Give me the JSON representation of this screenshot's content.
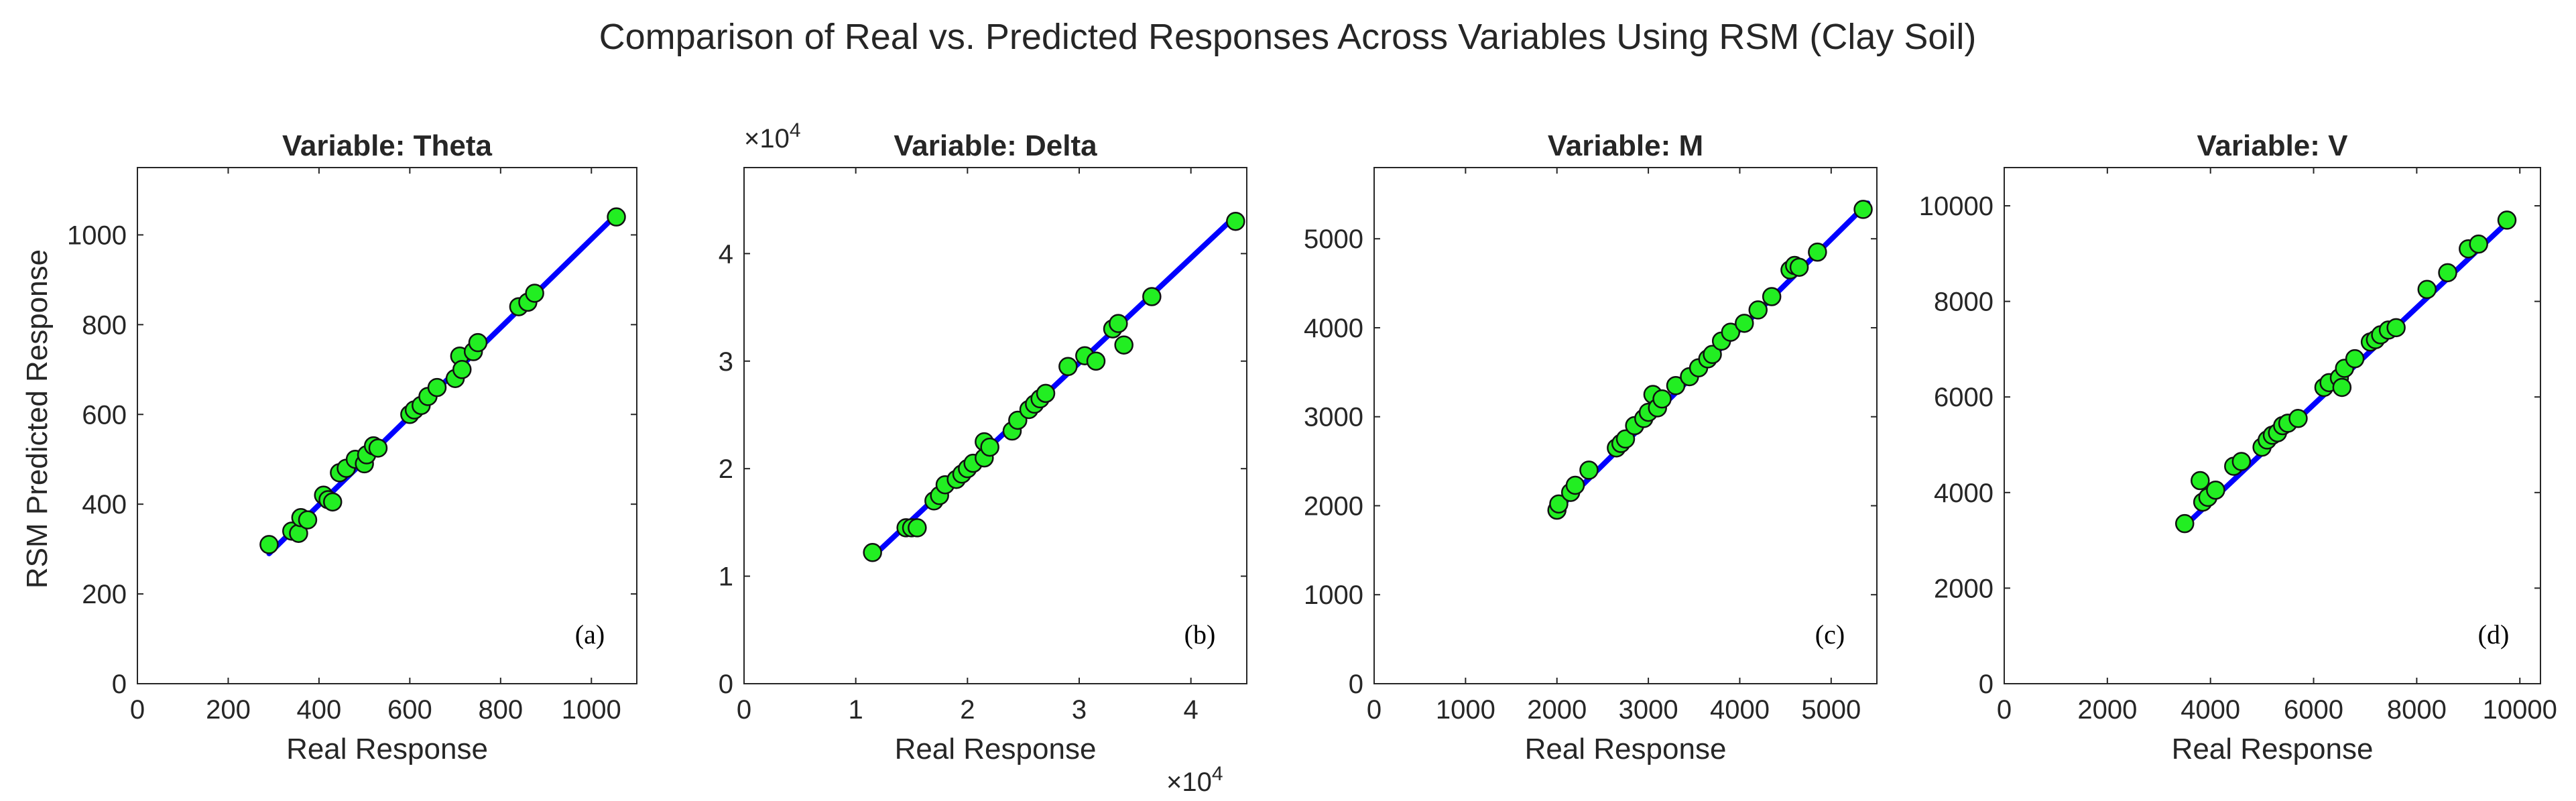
{
  "figure_title": "Comparison of Real vs. Predicted Responses Across Variables Using RSM (Clay Soil)",
  "shared_ylabel": "RSM Predicted Response",
  "colors": {
    "points": "#22ee22",
    "point_edge": "#111111",
    "fit_line": "#0000ff",
    "axes": "#262626"
  },
  "chart_data": [
    {
      "type": "scatter",
      "title": "Variable: Theta",
      "panel_label": "(a)",
      "xlabel": "Real Response",
      "xlim": [
        0,
        1100
      ],
      "ylim": [
        0,
        1150
      ],
      "xticks": [
        0,
        200,
        400,
        600,
        800,
        1000
      ],
      "xtick_labels": [
        "0",
        "200",
        "400",
        "600",
        "800",
        "1000"
      ],
      "yticks": [
        0,
        200,
        400,
        600,
        800,
        1000
      ],
      "ytick_labels": [
        "0",
        "200",
        "400",
        "600",
        "800",
        "1000"
      ],
      "x_exponent": "",
      "y_exponent": "",
      "fit_line": [
        [
          290,
          290
        ],
        [
          1060,
          1050
        ]
      ],
      "x": [
        290,
        340,
        355,
        360,
        375,
        410,
        420,
        430,
        445,
        460,
        480,
        500,
        505,
        520,
        530,
        600,
        610,
        625,
        640,
        660,
        700,
        710,
        715,
        740,
        750,
        840,
        860,
        875,
        1055
      ],
      "y": [
        310,
        340,
        335,
        370,
        365,
        420,
        410,
        405,
        470,
        480,
        500,
        490,
        510,
        530,
        525,
        600,
        610,
        620,
        640,
        660,
        680,
        730,
        700,
        740,
        760,
        840,
        850,
        870,
        1040
      ]
    },
    {
      "type": "scatter",
      "title": "Variable: Delta",
      "panel_label": "(b)",
      "xlabel": "Real Response",
      "xlim": [
        0,
        4.5
      ],
      "ylim": [
        0,
        4.8
      ],
      "xticks": [
        0,
        1,
        2,
        3,
        4
      ],
      "xtick_labels": [
        "0",
        "1",
        "2",
        "3",
        "4"
      ],
      "yticks": [
        0,
        1,
        2,
        3,
        4
      ],
      "ytick_labels": [
        "0",
        "1",
        "2",
        "3",
        "4"
      ],
      "x_exponent": "×10^4",
      "y_exponent": "×10^4",
      "fit_line": [
        [
          1.15,
          1.18
        ],
        [
          4.4,
          4.35
        ]
      ],
      "x": [
        1.15,
        1.45,
        1.5,
        1.55,
        1.7,
        1.75,
        1.8,
        1.9,
        1.95,
        2.0,
        2.05,
        2.15,
        2.15,
        2.2,
        2.4,
        2.45,
        2.55,
        2.6,
        2.65,
        2.7,
        2.9,
        3.05,
        3.15,
        3.3,
        3.35,
        3.4,
        3.65,
        4.4
      ],
      "y": [
        1.22,
        1.45,
        1.45,
        1.45,
        1.7,
        1.75,
        1.85,
        1.9,
        1.95,
        2.0,
        2.05,
        2.25,
        2.1,
        2.2,
        2.35,
        2.45,
        2.55,
        2.6,
        2.65,
        2.7,
        2.95,
        3.05,
        3.0,
        3.3,
        3.35,
        3.15,
        3.6,
        4.3
      ]
    },
    {
      "type": "scatter",
      "title": "Variable: M",
      "panel_label": "(c)",
      "xlabel": "Real Response",
      "xlim": [
        0,
        5500
      ],
      "ylim": [
        0,
        5800
      ],
      "xticks": [
        0,
        1000,
        2000,
        3000,
        4000,
        5000
      ],
      "xtick_labels": [
        "0",
        "1000",
        "2000",
        "3000",
        "4000",
        "5000"
      ],
      "yticks": [
        0,
        1000,
        2000,
        3000,
        4000,
        5000
      ],
      "ytick_labels": [
        "0",
        "1000",
        "2000",
        "3000",
        "4000",
        "5000"
      ],
      "x_exponent": "",
      "y_exponent": "",
      "fit_line": [
        [
          2000,
          1950
        ],
        [
          5400,
          5400
        ]
      ],
      "x": [
        2000,
        2020,
        2150,
        2200,
        2350,
        2650,
        2700,
        2750,
        2850,
        2950,
        3000,
        3050,
        3100,
        3150,
        3300,
        3450,
        3550,
        3650,
        3700,
        3800,
        3900,
        4050,
        4200,
        4350,
        4550,
        4600,
        4650,
        4850,
        5350
      ],
      "y": [
        1950,
        2020,
        2150,
        2230,
        2400,
        2650,
        2700,
        2750,
        2900,
        2980,
        3050,
        3250,
        3100,
        3200,
        3350,
        3450,
        3550,
        3650,
        3700,
        3850,
        3950,
        4050,
        4200,
        4350,
        4650,
        4700,
        4680,
        4850,
        5330
      ]
    },
    {
      "type": "scatter",
      "title": "Variable: V",
      "panel_label": "(d)",
      "xlabel": "Real Response",
      "xlim": [
        0,
        10400
      ],
      "ylim": [
        0,
        10800
      ],
      "xticks": [
        0,
        2000,
        4000,
        6000,
        8000,
        10000
      ],
      "xtick_labels": [
        "0",
        "2000",
        "4000",
        "6000",
        "8000",
        "10000"
      ],
      "yticks": [
        0,
        2000,
        4000,
        6000,
        8000,
        10000
      ],
      "ytick_labels": [
        "0",
        "2000",
        "4000",
        "6000",
        "8000",
        "10000"
      ],
      "x_exponent": "",
      "y_exponent": "",
      "fit_line": [
        [
          3500,
          3300
        ],
        [
          9850,
          9750
        ]
      ],
      "x": [
        3500,
        3800,
        3850,
        3950,
        4100,
        4450,
        4600,
        5000,
        5100,
        5200,
        5300,
        5400,
        5500,
        5700,
        6200,
        6300,
        6500,
        6550,
        6600,
        6800,
        7100,
        7200,
        7300,
        7450,
        7600,
        8200,
        8600,
        9000,
        9200,
        9750
      ],
      "y": [
        3350,
        4250,
        3800,
        3900,
        4050,
        4550,
        4650,
        4950,
        5100,
        5200,
        5250,
        5400,
        5450,
        5550,
        6200,
        6300,
        6400,
        6200,
        6600,
        6800,
        7150,
        7200,
        7300,
        7400,
        7450,
        8250,
        8600,
        9100,
        9200,
        9700
      ]
    }
  ]
}
